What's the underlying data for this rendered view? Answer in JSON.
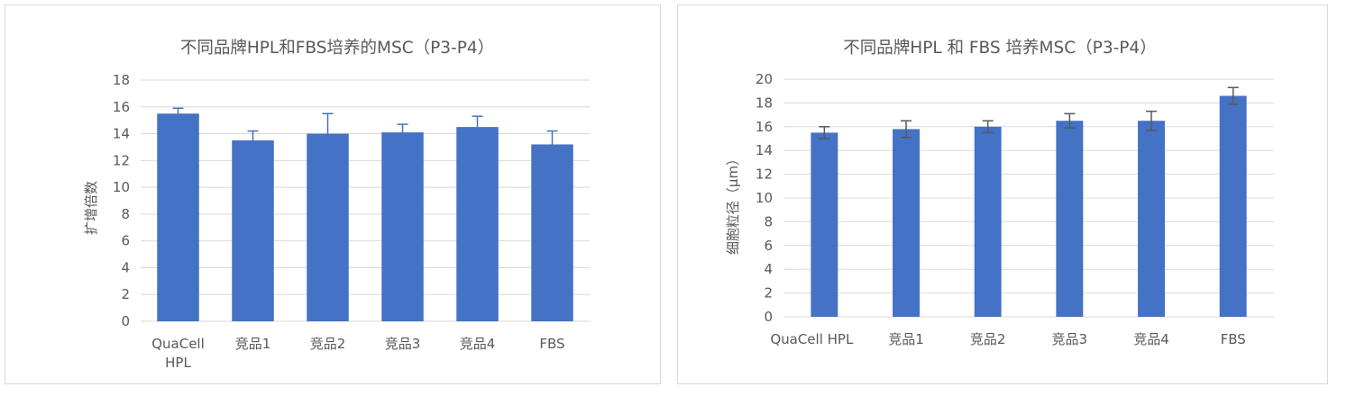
{
  "colors": {
    "bar": "#4472c4",
    "grid": "#d9d9d9",
    "text": "#595959",
    "error_left": "#4472c4",
    "error_right": "#595959"
  },
  "chart_data": [
    {
      "type": "bar",
      "title": "不同品牌HPL和FBS培养的MSC（P3-P4）",
      "xlabel": "",
      "ylabel": "扩增倍数",
      "categories": [
        "QuaCell HPL",
        "竞品1",
        "竞品2",
        "竞品3",
        "竞品4",
        "FBS"
      ],
      "category_lines": [
        [
          "QuaCell",
          "HPL"
        ],
        [
          "竞品1"
        ],
        [
          "竞品2"
        ],
        [
          "竞品3"
        ],
        [
          "竞品4"
        ],
        [
          "FBS"
        ]
      ],
      "values": [
        15.5,
        13.5,
        14.0,
        14.1,
        14.5,
        13.2
      ],
      "error_plus": [
        0.4,
        0.7,
        1.5,
        0.6,
        0.8,
        1.0
      ],
      "ylim": [
        0,
        18
      ],
      "yticks": [
        0,
        2,
        4,
        6,
        8,
        10,
        12,
        14,
        16,
        18
      ],
      "grid": true,
      "legend": "none"
    },
    {
      "type": "bar",
      "title": "不同品牌HPL 和 FBS 培养MSC（P3-P4）",
      "xlabel": "",
      "ylabel": "细胞粒径（μm）",
      "categories": [
        "QuaCell HPL",
        "竞品1",
        "竞品2",
        "竞品3",
        "竞品4",
        "FBS"
      ],
      "category_lines": [
        [
          "QuaCell HPL"
        ],
        [
          "竞品1"
        ],
        [
          "竞品2"
        ],
        [
          "竞品3"
        ],
        [
          "竞品4"
        ],
        [
          "FBS"
        ]
      ],
      "values": [
        15.5,
        15.8,
        16.0,
        16.5,
        16.5,
        18.6
      ],
      "error": [
        0.5,
        0.7,
        0.5,
        0.6,
        0.8,
        0.7
      ],
      "ylim": [
        0,
        20
      ],
      "yticks": [
        0,
        2,
        4,
        6,
        8,
        10,
        12,
        14,
        16,
        18,
        20
      ],
      "grid": true,
      "legend": "none"
    }
  ]
}
